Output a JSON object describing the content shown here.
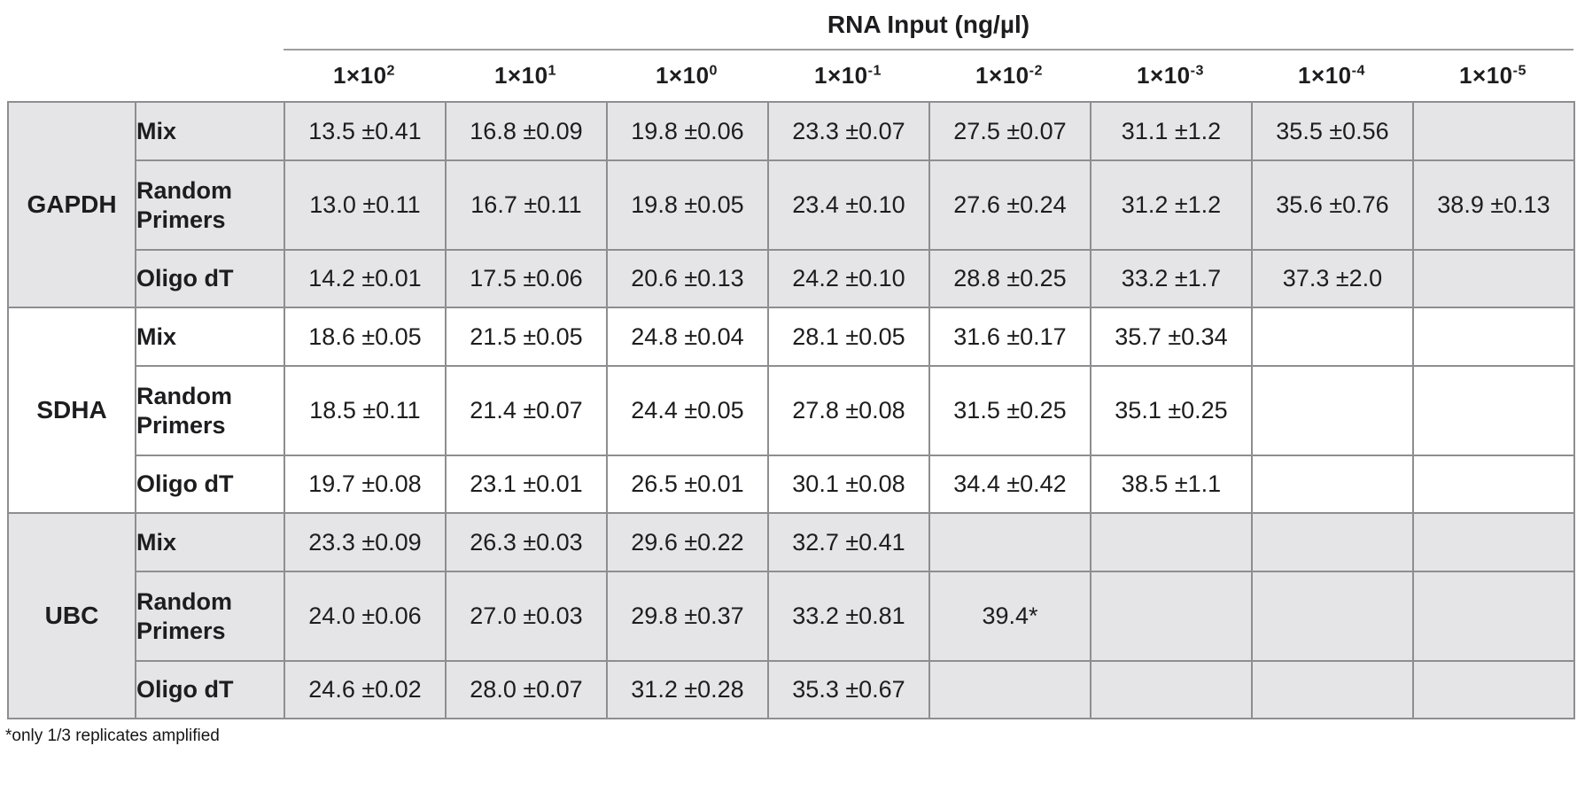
{
  "chart_data": {
    "type": "table",
    "title": "RNA Input (ng/µl)",
    "columns": [
      {
        "label": "1×10²",
        "base": "1×10",
        "exp": "2"
      },
      {
        "label": "1×10¹",
        "base": "1×10",
        "exp": "1"
      },
      {
        "label": "1×10⁰",
        "base": "1×10",
        "exp": "0"
      },
      {
        "label": "1×10⁻¹",
        "base": "1×10",
        "exp": "-1"
      },
      {
        "label": "1×10⁻²",
        "base": "1×10",
        "exp": "-2"
      },
      {
        "label": "1×10⁻³",
        "base": "1×10",
        "exp": "-3"
      },
      {
        "label": "1×10⁻⁴",
        "base": "1×10",
        "exp": "-4"
      },
      {
        "label": "1×10⁻⁵",
        "base": "1×10",
        "exp": "-5"
      }
    ],
    "sections": [
      {
        "gene": "GAPDH",
        "shaded": true,
        "rows": [
          {
            "method": "Mix",
            "values": [
              "13.5 ±0.41",
              "16.8 ±0.09",
              "19.8 ±0.06",
              "23.3 ±0.07",
              "27.5 ±0.07",
              "31.1 ±1.2",
              "35.5 ±0.56",
              ""
            ]
          },
          {
            "method": "Random Primers",
            "values": [
              "13.0 ±0.11",
              "16.7 ±0.11",
              "19.8 ±0.05",
              "23.4 ±0.10",
              "27.6 ±0.24",
              "31.2 ±1.2",
              "35.6 ±0.76",
              "38.9 ±0.13"
            ]
          },
          {
            "method": "Oligo dT",
            "values": [
              "14.2 ±0.01",
              "17.5 ±0.06",
              "20.6 ±0.13",
              "24.2 ±0.10",
              "28.8 ±0.25",
              "33.2 ±1.7",
              "37.3 ±2.0",
              ""
            ]
          }
        ]
      },
      {
        "gene": "SDHA",
        "shaded": false,
        "rows": [
          {
            "method": "Mix",
            "values": [
              "18.6 ±0.05",
              "21.5 ±0.05",
              "24.8 ±0.04",
              "28.1 ±0.05",
              "31.6 ±0.17",
              "35.7 ±0.34",
              "",
              ""
            ]
          },
          {
            "method": "Random Primers",
            "values": [
              "18.5 ±0.11",
              "21.4 ±0.07",
              "24.4 ±0.05",
              "27.8 ±0.08",
              "31.5 ±0.25",
              "35.1 ±0.25",
              "",
              ""
            ]
          },
          {
            "method": "Oligo dT",
            "values": [
              "19.7 ±0.08",
              "23.1 ±0.01",
              "26.5 ±0.01",
              "30.1 ±0.08",
              "34.4 ±0.42",
              "38.5 ±1.1",
              "",
              ""
            ]
          }
        ]
      },
      {
        "gene": "UBC",
        "shaded": true,
        "rows": [
          {
            "method": "Mix",
            "values": [
              "23.3 ±0.09",
              "26.3 ±0.03",
              "29.6 ±0.22",
              "32.7 ±0.41",
              "",
              "",
              "",
              ""
            ]
          },
          {
            "method": "Random Primers",
            "values": [
              "24.0 ±0.06",
              "27.0 ±0.03",
              "29.8 ±0.37",
              "33.2 ±0.81",
              "39.4*",
              "",
              "",
              ""
            ]
          },
          {
            "method": "Oligo dT",
            "values": [
              "24.6 ±0.02",
              "28.0 ±0.07",
              "31.2 ±0.28",
              "35.3 ±0.67",
              "",
              "",
              "",
              ""
            ]
          }
        ]
      }
    ],
    "footnote": "*only 1/3 replicates amplified",
    "colors": {
      "shaded_section_bg": "#e5e5e7",
      "cell_border": "#8e8e90",
      "title_underline": "#9e9ea0",
      "text": "#1d1d1f"
    }
  }
}
